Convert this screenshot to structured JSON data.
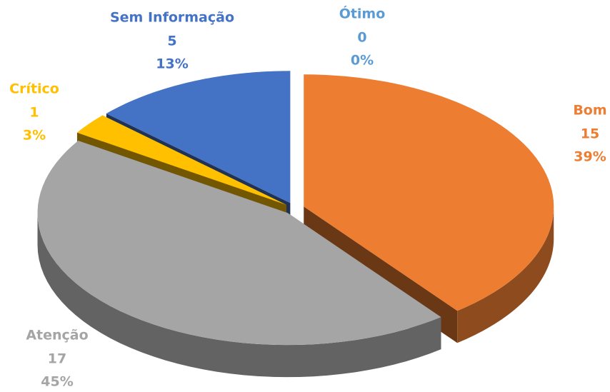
{
  "chart_data": {
    "type": "pie3d",
    "categories": [
      "Ótimo",
      "Bom",
      "Atenção",
      "Crítico",
      "Sem Informação"
    ],
    "values": [
      0,
      15,
      17,
      1,
      5
    ],
    "percent_labels": [
      "0%",
      "39%",
      "45%",
      "3%",
      "13%"
    ],
    "colors": [
      "#5b9bd5",
      "#ed7d31",
      "#a5a5a5",
      "#ffc000",
      "#4472c4"
    ]
  }
}
